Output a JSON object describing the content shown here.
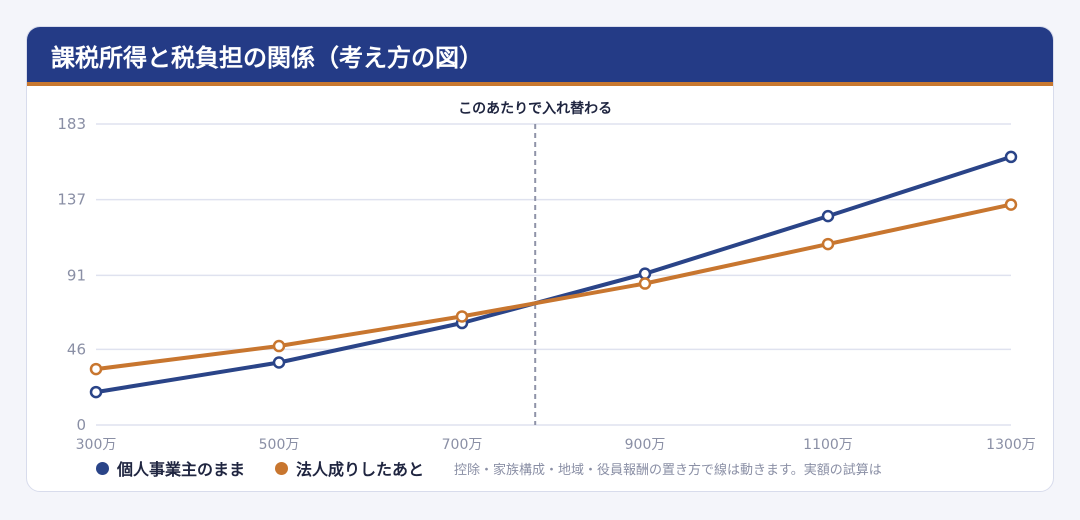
{
  "header": {
    "title": "課税所得と税負担の関係（考え方の図）"
  },
  "annotation": {
    "crossover_label": "このあたりで入れ替わる",
    "crossover_x": 780
  },
  "note": "控除・家族構成・地域・役員報酬の置き方で線は動きます。実額の試算は",
  "colors": {
    "individual": "#2a4488",
    "corporate": "#c8762f",
    "header": "#243b86",
    "accent": "#c8782f",
    "grid": "#dfe2ef",
    "tick": "#8a8fa5"
  },
  "chart_data": {
    "type": "line",
    "title": "課税所得と税負担の関係（考え方の図）",
    "xlabel": "",
    "ylabel": "",
    "x": [
      300,
      500,
      700,
      900,
      1100,
      1300
    ],
    "xticks": [
      "300万",
      "500万",
      "700万",
      "900万",
      "1100万",
      "1300万"
    ],
    "yticks": [
      0,
      46,
      91,
      137,
      183
    ],
    "ylim": [
      0,
      183
    ],
    "grid": true,
    "legend_position": "bottom-left",
    "series": [
      {
        "name": "個人事業主のまま",
        "color": "#2a4488",
        "values": [
          20,
          38,
          62,
          92,
          127,
          163
        ]
      },
      {
        "name": "法人成りしたあと",
        "color": "#c8762f",
        "values": [
          34,
          48,
          66,
          86,
          110,
          134
        ]
      }
    ]
  }
}
